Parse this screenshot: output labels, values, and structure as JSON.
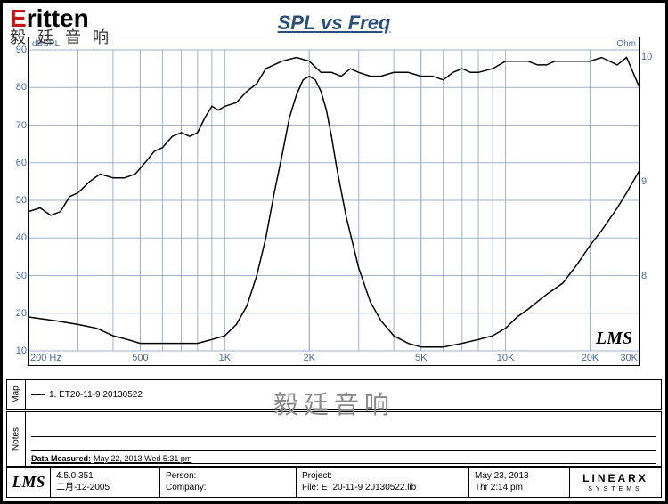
{
  "logo": {
    "text": "Eritten",
    "red_char": "E",
    "rest": "ritten",
    "subtitle": "毅 廷 音 响"
  },
  "chart": {
    "type": "line",
    "title": "SPL vs Freq",
    "x_unit": "Hz",
    "y_left_unit": "dBSPL",
    "y_right_unit": "Ohm",
    "x_scale": "log",
    "x_range": [
      200,
      30000
    ],
    "y_left": {
      "min": 10,
      "max": 90,
      "step": 10
    },
    "y_right": {
      "min": 7.5,
      "max": 10,
      "ticks": [
        8,
        9,
        10
      ]
    },
    "x_major_ticks": [
      200,
      500,
      1000,
      2000,
      5000,
      10000,
      20000,
      30000
    ],
    "x_tick_labels": [
      "200",
      "500",
      "1K",
      "2K",
      "5K",
      "10K",
      "20K",
      "30K"
    ],
    "x_minor_per_decade": [
      3,
      4,
      5,
      6,
      7,
      8,
      9
    ],
    "grid_color": "#9fb3cc",
    "curve_color": "#000000",
    "background_color": "#ffffff",
    "title_color": "#2a4d7a",
    "label_color": "#4a6a9a",
    "title_fontsize": 22,
    "label_fontsize": 11,
    "spl_curve": [
      [
        200,
        47
      ],
      [
        220,
        48
      ],
      [
        240,
        46
      ],
      [
        260,
        47
      ],
      [
        280,
        51
      ],
      [
        300,
        52
      ],
      [
        330,
        55
      ],
      [
        360,
        57
      ],
      [
        400,
        56
      ],
      [
        440,
        56
      ],
      [
        480,
        57
      ],
      [
        520,
        60
      ],
      [
        560,
        63
      ],
      [
        600,
        64
      ],
      [
        650,
        67
      ],
      [
        700,
        68
      ],
      [
        750,
        67
      ],
      [
        800,
        68
      ],
      [
        850,
        72
      ],
      [
        900,
        75
      ],
      [
        950,
        74
      ],
      [
        1000,
        75
      ],
      [
        1100,
        76
      ],
      [
        1200,
        79
      ],
      [
        1300,
        81
      ],
      [
        1400,
        85
      ],
      [
        1600,
        87
      ],
      [
        1800,
        88
      ],
      [
        2000,
        87
      ],
      [
        2200,
        84
      ],
      [
        2400,
        84
      ],
      [
        2600,
        83
      ],
      [
        2800,
        85
      ],
      [
        3000,
        84
      ],
      [
        3300,
        83
      ],
      [
        3600,
        83
      ],
      [
        4000,
        84
      ],
      [
        4500,
        84
      ],
      [
        5000,
        83
      ],
      [
        5500,
        83
      ],
      [
        6000,
        82
      ],
      [
        6500,
        84
      ],
      [
        7000,
        85
      ],
      [
        7500,
        84
      ],
      [
        8000,
        84
      ],
      [
        9000,
        85
      ],
      [
        10000,
        87
      ],
      [
        11000,
        87
      ],
      [
        12000,
        87
      ],
      [
        13000,
        86
      ],
      [
        14000,
        86
      ],
      [
        15000,
        87
      ],
      [
        17000,
        87
      ],
      [
        20000,
        87
      ],
      [
        22000,
        88
      ],
      [
        25000,
        86
      ],
      [
        27000,
        88
      ],
      [
        30000,
        80
      ]
    ],
    "impedance_curve": [
      [
        200,
        19
      ],
      [
        250,
        18
      ],
      [
        300,
        17
      ],
      [
        350,
        16
      ],
      [
        400,
        14
      ],
      [
        450,
        13
      ],
      [
        500,
        12
      ],
      [
        600,
        12
      ],
      [
        700,
        12
      ],
      [
        800,
        12
      ],
      [
        900,
        13
      ],
      [
        1000,
        14
      ],
      [
        1100,
        17
      ],
      [
        1200,
        22
      ],
      [
        1300,
        30
      ],
      [
        1400,
        40
      ],
      [
        1500,
        52
      ],
      [
        1600,
        62
      ],
      [
        1700,
        72
      ],
      [
        1800,
        78
      ],
      [
        1900,
        82
      ],
      [
        2000,
        83
      ],
      [
        2100,
        82
      ],
      [
        2200,
        79
      ],
      [
        2300,
        74
      ],
      [
        2400,
        67
      ],
      [
        2500,
        59
      ],
      [
        2700,
        46
      ],
      [
        3000,
        32
      ],
      [
        3300,
        23
      ],
      [
        3600,
        18
      ],
      [
        4000,
        14
      ],
      [
        4500,
        12
      ],
      [
        5000,
        11
      ],
      [
        5500,
        11
      ],
      [
        6000,
        11
      ],
      [
        7000,
        12
      ],
      [
        8000,
        13
      ],
      [
        9000,
        14
      ],
      [
        10000,
        16
      ],
      [
        11000,
        19
      ],
      [
        12000,
        21
      ],
      [
        14000,
        25
      ],
      [
        16000,
        28
      ],
      [
        18000,
        33
      ],
      [
        20000,
        38
      ],
      [
        22000,
        42
      ],
      [
        25000,
        48
      ],
      [
        27000,
        52
      ],
      [
        30000,
        58
      ]
    ],
    "lms_inline": "LMS"
  },
  "watermark": "毅廷音响",
  "map": {
    "tab": "Map",
    "legend_text": "1. ET20-11-9  20130522"
  },
  "notes": {
    "tab": "Notes",
    "data_measured_label": "Data Measured:",
    "data_measured_value": "May 22, 2013  Wed  5:31 pm"
  },
  "footer": {
    "lms": "LMS",
    "version": "4.5.0.351",
    "date_cn": "二月-12-2005",
    "person_label": "Person:",
    "company_label": "Company:",
    "project_label": "Project:",
    "file_label": "File:",
    "file_value": "ET20-11-9 20130522.lib",
    "date": "May 23, 2013",
    "time": "Thr  2:14 pm",
    "linearx_top": "LINEARX",
    "linearx_bot": "SYSTEMS"
  }
}
